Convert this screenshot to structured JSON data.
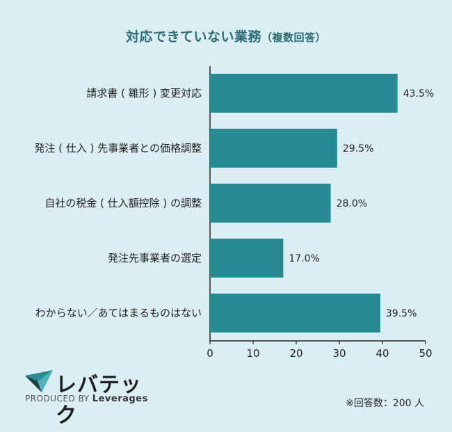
{
  "chart_data": {
    "type": "bar",
    "orientation": "horizontal",
    "title": "対応できていない業務",
    "subtitle": "（複数回答）",
    "categories": [
      "請求書 ( 雛形 ) 変更対応",
      "発注 ( 仕入 ) 先事業者との価格調整",
      "自社の税金 ( 仕入額控除 ) の調整",
      "発注先事業者の選定",
      "わからない／あてはまるものはない"
    ],
    "values": [
      43.5,
      29.5,
      28.0,
      17.0,
      39.5
    ],
    "value_labels": [
      "43.5%",
      "29.5%",
      "28.0%",
      "17.0%",
      "39.5%"
    ],
    "xlim": [
      0,
      50
    ],
    "xticks": [
      "0",
      "10",
      "20",
      "30",
      "40",
      "50"
    ],
    "bar_color": "#2a8a94",
    "grid": false
  },
  "logo": {
    "name": "レバテック",
    "produced_by": "PRODUCED BY",
    "brand": "Leverages"
  },
  "footnote": "※回答数：200 人"
}
